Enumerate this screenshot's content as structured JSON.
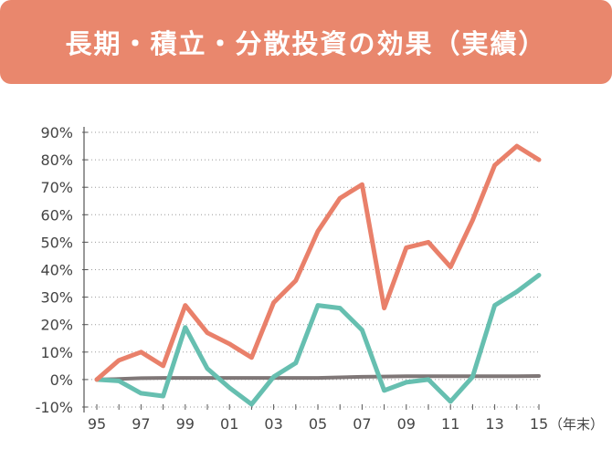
{
  "header": {
    "title": "長期・積立・分散投資の効果（実績）"
  },
  "chart_data": {
    "type": "line",
    "title": "長期・積立・分散投資の効果（実績）",
    "xlabel": "",
    "ylabel": "",
    "x_unit_label": "（年末）",
    "x": [
      "95",
      "96",
      "97",
      "98",
      "99",
      "00",
      "01",
      "02",
      "03",
      "04",
      "05",
      "06",
      "07",
      "08",
      "09",
      "10",
      "11",
      "12",
      "13",
      "14",
      "15"
    ],
    "x_tick_labels": [
      "95",
      "97",
      "99",
      "01",
      "03",
      "05",
      "07",
      "09",
      "11",
      "13",
      "15"
    ],
    "y_tick_labels": [
      "90%",
      "80%",
      "70%",
      "60%",
      "50%",
      "40%",
      "30%",
      "20%",
      "10%",
      "0%",
      "-10%"
    ],
    "ylim": [
      -10,
      90
    ],
    "grid": "horizontal dotted",
    "series": [
      {
        "color": "#e9806a",
        "values": [
          0,
          7,
          10,
          5,
          27,
          17,
          13,
          8,
          28,
          36,
          54,
          66,
          71,
          26,
          48,
          50,
          41,
          58,
          78,
          85,
          80
        ]
      },
      {
        "color": "#66bfb0",
        "values": [
          0,
          -0.5,
          -5,
          -6,
          19,
          4,
          -3,
          -9,
          1,
          6,
          27,
          26,
          18,
          -4,
          -1,
          0,
          -8,
          1,
          27,
          32,
          38
        ]
      },
      {
        "color": "#7f7777",
        "values": [
          0,
          0.2,
          0.5,
          0.6,
          0.6,
          0.6,
          0.6,
          0.6,
          0.6,
          0.6,
          0.6,
          0.8,
          1.0,
          1.1,
          1.2,
          1.2,
          1.2,
          1.2,
          1.2,
          1.2,
          1.3
        ]
      }
    ]
  }
}
